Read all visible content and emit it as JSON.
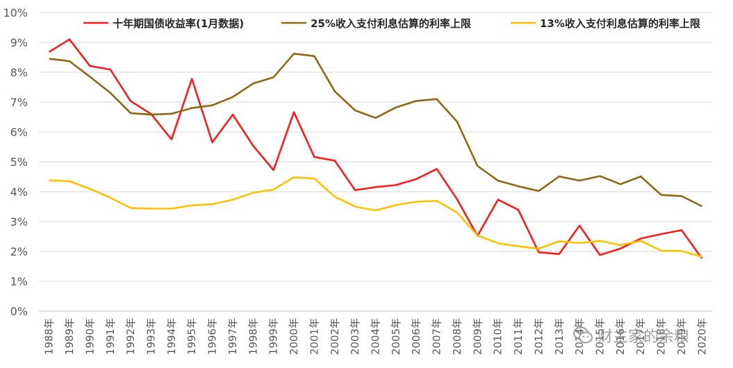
{
  "chart_data": {
    "type": "line",
    "categories": [
      "1988年",
      "1989年",
      "1990年",
      "1991年",
      "1992年",
      "1993年",
      "1994年",
      "1995年",
      "1996年",
      "1997年",
      "1998年",
      "1999年",
      "2000年",
      "2001年",
      "2002年",
      "2003年",
      "2004年",
      "2005年",
      "2006年",
      "2007年",
      "2008年",
      "2009年",
      "2010年",
      "2011年",
      "2012年",
      "2013年",
      "2014年",
      "2015年",
      "2016年",
      "2017年",
      "2018年",
      "2019年",
      "2020年"
    ],
    "series": [
      {
        "name": "十年期国债收益率(1月数据)",
        "color": "#ff1a1a",
        "values": [
          8.68,
          9.1,
          8.21,
          8.09,
          7.03,
          6.6,
          5.75,
          7.78,
          5.65,
          6.58,
          5.54,
          4.72,
          6.66,
          5.16,
          5.04,
          4.05,
          4.15,
          4.22,
          4.42,
          4.76,
          3.74,
          2.52,
          3.73,
          3.39,
          1.97,
          1.91,
          2.86,
          1.88,
          2.09,
          2.43,
          2.58,
          2.71,
          1.76
        ]
      },
      {
        "name": "25%收入支付利息估算的利率上限",
        "color": "#8b6914",
        "values": [
          8.45,
          8.37,
          7.85,
          7.31,
          6.63,
          6.58,
          6.61,
          6.8,
          6.89,
          7.17,
          7.62,
          7.83,
          8.62,
          8.54,
          7.36,
          6.72,
          6.47,
          6.82,
          7.04,
          7.1,
          6.34,
          4.86,
          4.37,
          4.18,
          4.02,
          4.51,
          4.37,
          4.52,
          4.25,
          4.51,
          3.89,
          3.85,
          3.51
        ]
      },
      {
        "name": "13%收入支付利息估算的利率上限",
        "color": "#ffc000",
        "values": [
          4.38,
          4.35,
          4.09,
          3.8,
          3.45,
          3.43,
          3.43,
          3.54,
          3.58,
          3.73,
          3.96,
          4.07,
          4.48,
          4.44,
          3.83,
          3.5,
          3.37,
          3.55,
          3.66,
          3.69,
          3.3,
          2.53,
          2.27,
          2.17,
          2.09,
          2.34,
          2.28,
          2.35,
          2.21,
          2.35,
          2.02,
          2.01,
          1.82
        ]
      }
    ],
    "yticks": [
      "0%",
      "1%",
      "2%",
      "3%",
      "4%",
      "5%",
      "6%",
      "7%",
      "8%",
      "9%",
      "10%"
    ],
    "ylim": [
      0,
      10
    ],
    "grid": true,
    "legend_position": "top"
  },
  "watermark": {
    "text": "财主家的余粮",
    "icon": "wechat-icon"
  }
}
